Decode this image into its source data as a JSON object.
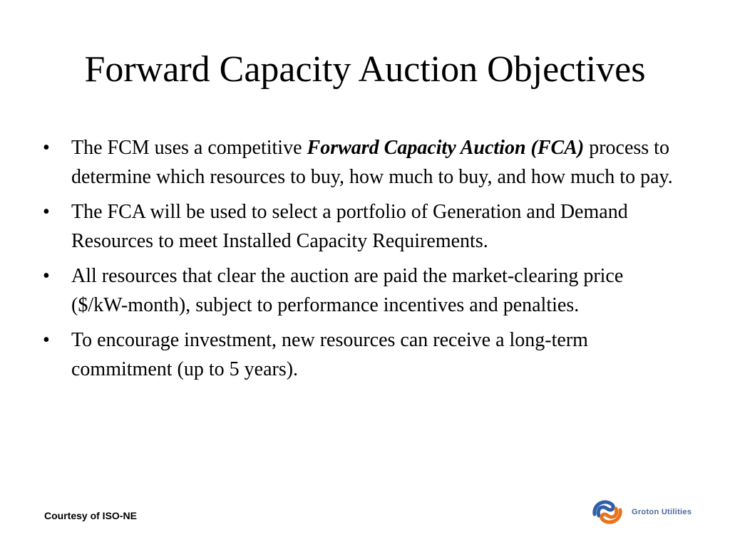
{
  "slide": {
    "title": "Forward Capacity Auction Objectives",
    "bullet_symbol": "•",
    "bullets": [
      {
        "before": "The FCM uses a competitive ",
        "emphasis": "Forward Capacity Auction (FCA)",
        "after": " process to determine which resources to buy, how much to buy, and how much to pay."
      },
      {
        "text": "The FCA will be used to select a portfolio of Generation and Demand Resources to meet Installed Capacity Requirements."
      },
      {
        "text": "All resources that clear the auction are paid the market-clearing price ($/kW-month), subject to performance incentives and penalties."
      },
      {
        "text": "To encourage investment, new resources can receive a long-term commitment (up to 5 years)."
      }
    ]
  },
  "footer": {
    "credit": "Courtesy of ISO-NE",
    "logo_text": "Groton Utilities",
    "logo_colors": {
      "orange": "#e8731a",
      "blue": "#2f5fa8",
      "text": "#4a6a9a"
    }
  }
}
